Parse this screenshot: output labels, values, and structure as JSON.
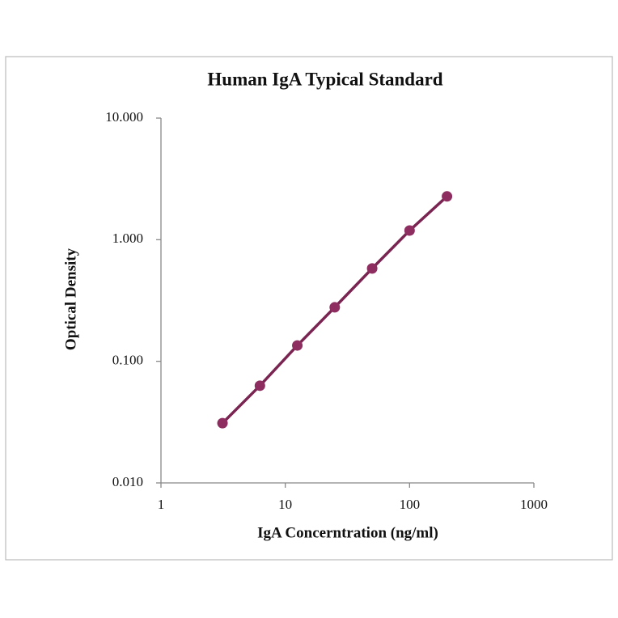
{
  "chart_data": {
    "type": "scatter-line",
    "title": "Human IgA Typical Standard",
    "x_label": "IgA Concerntration (ng/ml)",
    "y_label": "Optical Density",
    "x": [
      3.125,
      6.25,
      12.5,
      25,
      50,
      100,
      200
    ],
    "values": [
      0.031,
      0.063,
      0.135,
      0.278,
      0.58,
      1.19,
      2.27
    ],
    "color": "#7a2452",
    "marker_color": "#8e2d60",
    "log_x": true,
    "log_y": true,
    "xlim": [
      1,
      1000
    ],
    "xticks": [
      1,
      10,
      100,
      1000
    ],
    "ylim": [
      0.01,
      10
    ],
    "yticks": [
      {
        "value": 0.01,
        "label": "0.010"
      },
      {
        "value": 0.1,
        "label": "0.100"
      },
      {
        "value": 1,
        "label": "1.000"
      },
      {
        "value": 10,
        "label": "10.000"
      }
    ]
  }
}
